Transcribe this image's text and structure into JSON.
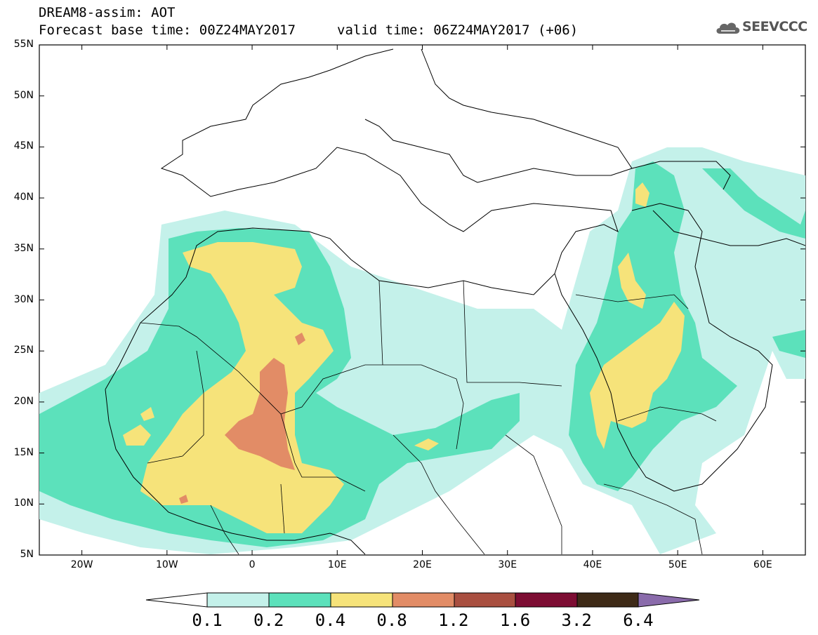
{
  "header": {
    "title_line1": "DREAM8-assim: AOT",
    "title_line2": "Forecast base time: 00Z24MAY2017",
    "valid_time": "valid time: 06Z24MAY2017 (+06)",
    "logo_text": "SEEVCCC"
  },
  "map": {
    "lat_labels": [
      "55N",
      "50N",
      "45N",
      "40N",
      "35N",
      "30N",
      "25N",
      "20N",
      "15N",
      "10N",
      "5N"
    ],
    "lon_labels": [
      "20W",
      "10W",
      "0",
      "10E",
      "20E",
      "30E",
      "40E",
      "50E",
      "60E"
    ],
    "extent": {
      "lon_min": -25,
      "lon_max": 65,
      "lat_min": 5,
      "lat_max": 55
    }
  },
  "colorbar": {
    "labels": [
      "0.1",
      "0.2",
      "0.4",
      "0.8",
      "1.2",
      "1.6",
      "3.2",
      "6.4"
    ],
    "colors": [
      "#ffffff",
      "#c4f1ea",
      "#5ce1bb",
      "#f6e37a",
      "#e28c66",
      "#a94f40",
      "#7d0d33",
      "#3e2a17",
      "#8a6bab"
    ]
  },
  "legend_bins": [
    {
      "range": "0.1-0.2",
      "color": "#c4f1ea"
    },
    {
      "range": "0.2-0.4",
      "color": "#5ce1bb"
    },
    {
      "range": "0.4-0.8",
      "color": "#f6e37a"
    },
    {
      "range": "0.8-1.2",
      "color": "#e28c66"
    }
  ]
}
